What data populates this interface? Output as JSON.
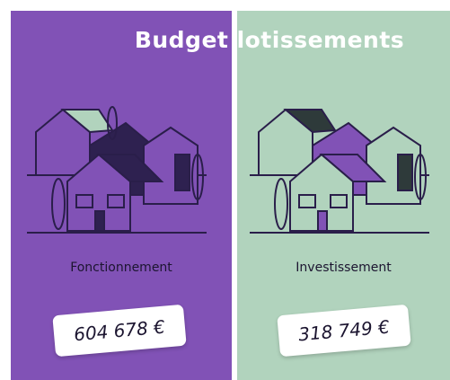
{
  "title": "Budget lotissements",
  "panels": [
    {
      "label": "Fonctionnement",
      "amount": "604 678 €"
    },
    {
      "label": "Investissement",
      "amount": "318 749 €"
    }
  ]
}
